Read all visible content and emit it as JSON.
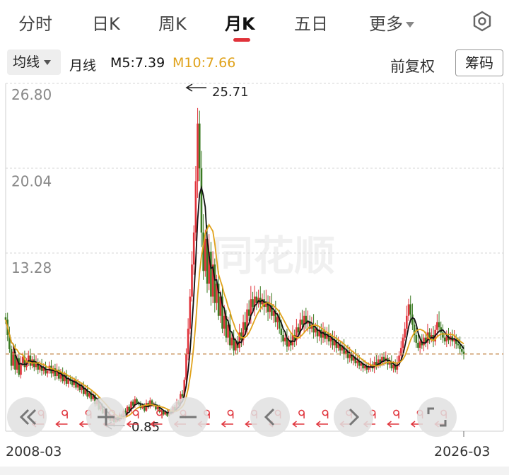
{
  "tabs": [
    "分时",
    "日K",
    "周K",
    "月K",
    "五日",
    "更多"
  ],
  "active_tab": "月K",
  "indicator": {
    "ma_select_label": "均线",
    "period_label": "月线",
    "m5_text": "M5:7.39",
    "m10_text": "M10:7.66",
    "m5_color": "#111111",
    "m10_color": "#e0a21a"
  },
  "buttons": {
    "adjust_label": "前复权",
    "chips_label": "筹码"
  },
  "watermark": "同花顺",
  "colors": {
    "up": "#e0323a",
    "down": "#3a7a22",
    "ref_line": "#c8925a",
    "grid": "#d6d6d6"
  },
  "chart_data": {
    "type": "candlestick",
    "y_ticks": [
      "26.80",
      "20.04",
      "13.28"
    ],
    "ylim": [
      0.5,
      27.3
    ],
    "x_start_label": "2008-03",
    "x_end_label": "2026-03",
    "max_label": "25.71",
    "min_label": "0.85",
    "last_close": 6.52,
    "closes": [
      9.2,
      8.0,
      6.9,
      5.6,
      6.7,
      5.3,
      6.2,
      4.9,
      5.8,
      6.3,
      5.5,
      6.0,
      6.4,
      5.6,
      6.1,
      5.5,
      5.9,
      5.3,
      5.6,
      5.2,
      5.5,
      5.0,
      5.2,
      5.6,
      5.0,
      5.4,
      4.8,
      5.3,
      4.6,
      5.0,
      4.4,
      4.9,
      4.2,
      4.6,
      4.4,
      4.1,
      4.5,
      3.9,
      4.2,
      3.7,
      4.0,
      3.4,
      3.8,
      3.2,
      3.5,
      3.0,
      3.3,
      2.6,
      2.9,
      2.2,
      2.5,
      1.9,
      2.2,
      1.5,
      1.7,
      1.3,
      1.6,
      1.2,
      1.6,
      1.3,
      1.8,
      1.5,
      2.1,
      1.8,
      2.4,
      2.1,
      2.8,
      2.5,
      3.0,
      2.7,
      2.6,
      2.3,
      2.5,
      2.1,
      2.7,
      2.4,
      2.9,
      2.5,
      2.6,
      2.2,
      2.4,
      2.0,
      2.1,
      1.8,
      2.0,
      1.7,
      2.1,
      1.9,
      2.4,
      2.1,
      2.8,
      2.6,
      3.4,
      3.2,
      4.5,
      6.5,
      8.5,
      11.0,
      13.5,
      16.0,
      20.0,
      24.5,
      21.0,
      16.0,
      13.0,
      15.5,
      12.0,
      14.5,
      11.0,
      13.5,
      10.5,
      12.0,
      9.5,
      11.0,
      8.5,
      9.5,
      7.8,
      8.8,
      7.2,
      7.8,
      6.8,
      7.5,
      7.0,
      8.2,
      7.6,
      9.0,
      8.4,
      10.0,
      9.5,
      10.8,
      10.2,
      11.0,
      10.5,
      10.9,
      10.4,
      10.8,
      10.2,
      10.6,
      9.8,
      10.3,
      9.5,
      9.9,
      9.0,
      9.4,
      8.5,
      8.0,
      7.5,
      7.8,
      7.1,
      7.6,
      7.2,
      8.0,
      7.6,
      8.6,
      8.2,
      9.2,
      8.8,
      9.5,
      8.9,
      9.1,
      8.5,
      8.8,
      8.2,
      8.5,
      7.9,
      8.4,
      7.8,
      8.3,
      7.7,
      8.1,
      7.5,
      7.8,
      7.2,
      7.6,
      7.0,
      7.3,
      6.8,
      7.1,
      6.5,
      6.8,
      6.2,
      6.5,
      6.0,
      6.3,
      5.8,
      6.0,
      5.6,
      5.8,
      5.4,
      5.6,
      5.3,
      5.5,
      5.7,
      5.4,
      5.9,
      5.6,
      6.1,
      5.8,
      6.3,
      6.0,
      6.2,
      5.7,
      5.9,
      5.4,
      5.7,
      5.3,
      5.8,
      6.4,
      7.0,
      7.8,
      8.5,
      9.5,
      10.4,
      9.6,
      8.8,
      8.0,
      7.4,
      7.0,
      7.5,
      7.2,
      7.8,
      7.4,
      8.2,
      7.7,
      8.0,
      7.5,
      8.4,
      9.0,
      8.6,
      8.2,
      7.8,
      7.5,
      7.9,
      7.6,
      7.9,
      7.5,
      7.7,
      7.3,
      7.2,
      6.9,
      6.7,
      6.52
    ]
  }
}
